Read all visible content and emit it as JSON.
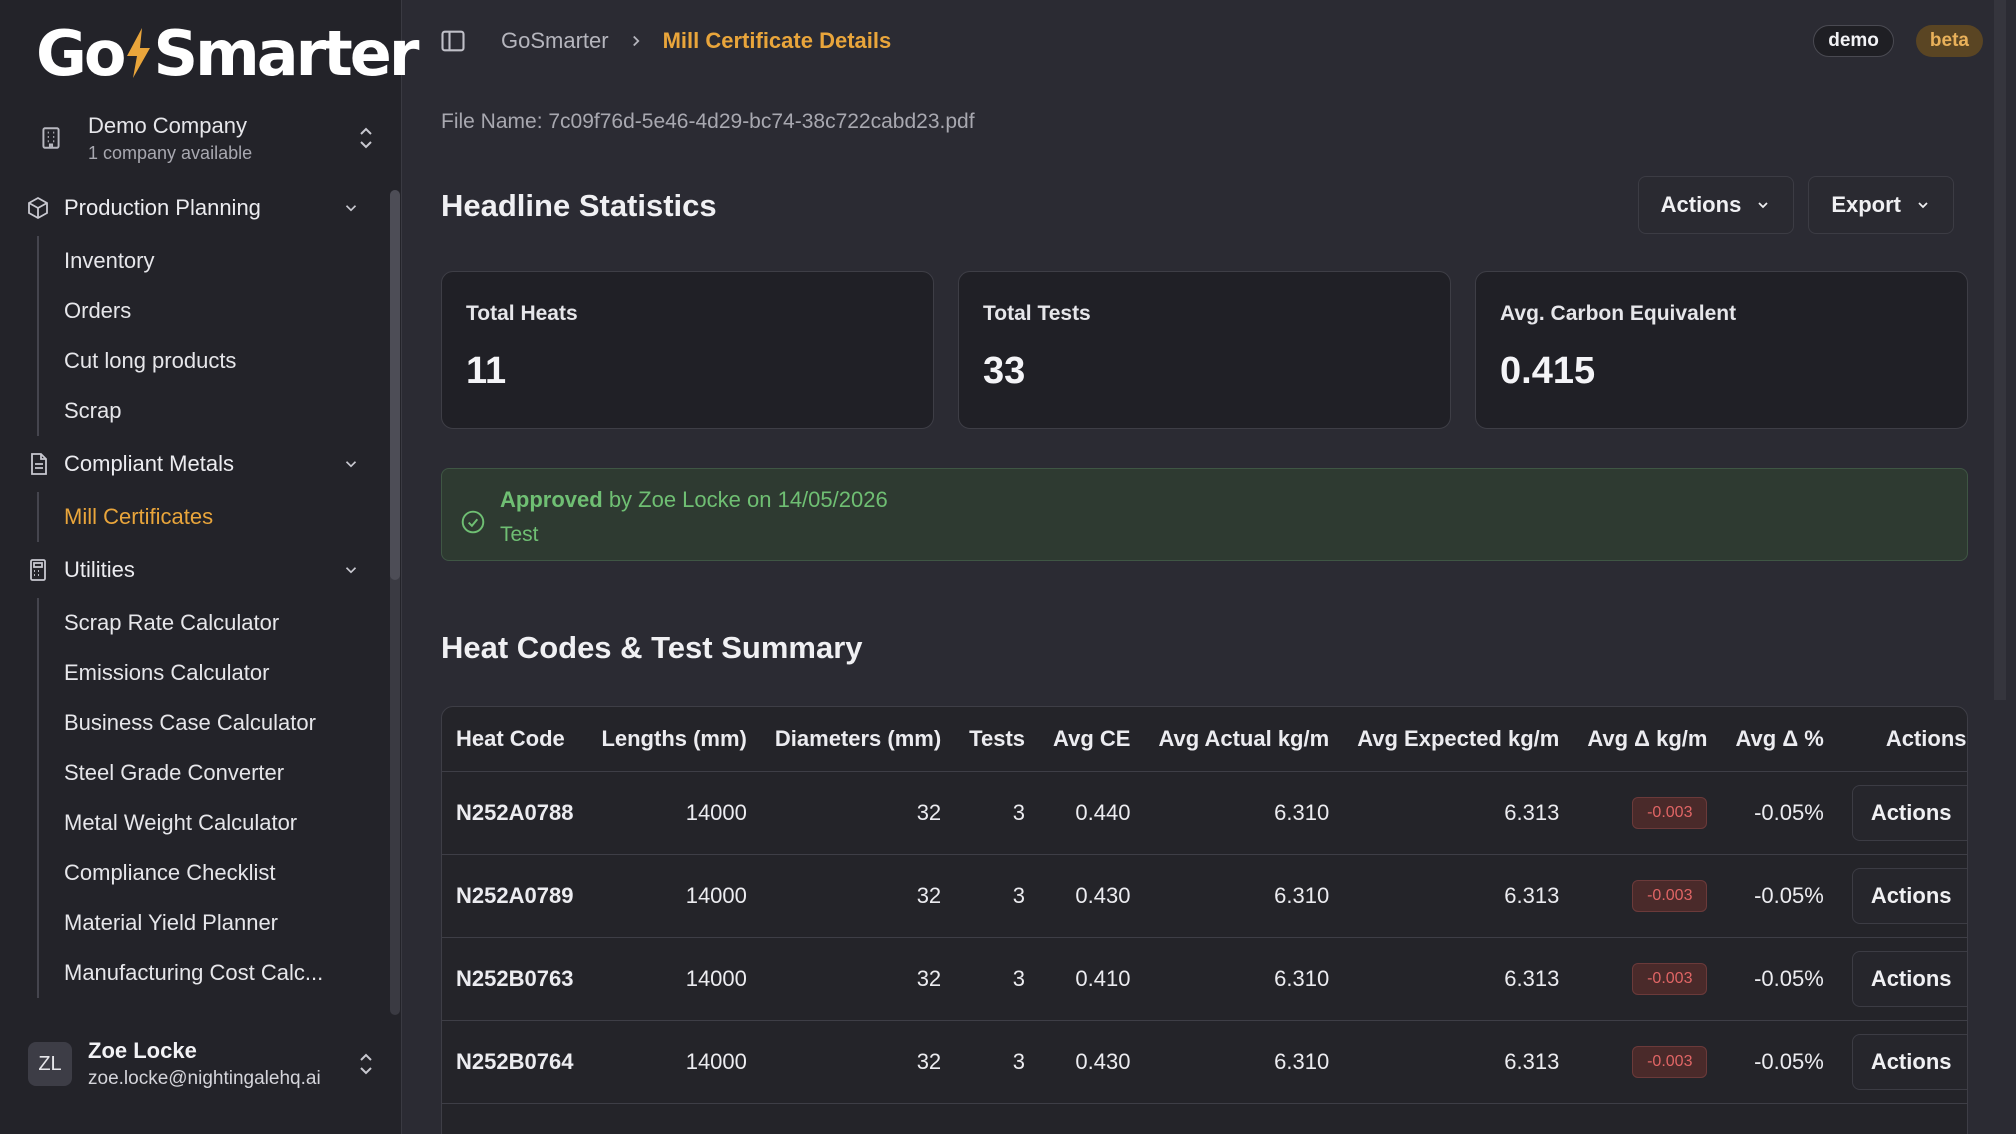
{
  "brand": {
    "name": "GoSmarter",
    "accent": "#e9a53b"
  },
  "company": {
    "name": "Demo Company",
    "subtitle": "1 company available"
  },
  "sidebar": {
    "groups": [
      {
        "label": "Production Planning",
        "items": [
          "Inventory",
          "Orders",
          "Cut long products",
          "Scrap"
        ]
      },
      {
        "label": "Compliant Metals",
        "items": [
          "Mill Certificates"
        ]
      },
      {
        "label": "Utilities",
        "items": [
          "Scrap Rate Calculator",
          "Emissions Calculator",
          "Business Case Calculator",
          "Steel Grade Converter",
          "Metal Weight Calculator",
          "Compliance Checklist",
          "Material Yield Planner",
          "Manufacturing Cost Calc..."
        ]
      }
    ],
    "active_item": "Mill Certificates"
  },
  "user": {
    "initials": "ZL",
    "name": "Zoe Locke",
    "email": "zoe.locke@nightingalehq.ai"
  },
  "header": {
    "breadcrumb_root": "GoSmarter",
    "breadcrumb_current": "Mill Certificate Details",
    "badge_demo": "demo",
    "badge_beta": "beta"
  },
  "file": {
    "label": "File Name: 7c09f76d-5e46-4d29-bc74-38c722cabd23.pdf"
  },
  "headline": {
    "title": "Headline Statistics",
    "actions_label": "Actions",
    "export_label": "Export",
    "stats": [
      {
        "label": "Total Heats",
        "value": "11"
      },
      {
        "label": "Total Tests",
        "value": "33"
      },
      {
        "label": "Avg. Carbon Equivalent",
        "value": "0.415"
      }
    ]
  },
  "approval": {
    "status": "Approved",
    "detail": "by Zoe Locke on 14/05/2026",
    "note": "Test"
  },
  "summary": {
    "title": "Heat Codes & Test Summary",
    "columns": [
      "Heat Code",
      "Lengths (mm)",
      "Diameters (mm)",
      "Tests",
      "Avg CE",
      "Avg Actual kg/m",
      "Avg Expected kg/m",
      "Avg Δ kg/m",
      "Avg Δ %",
      "Actions"
    ],
    "rows": [
      {
        "heat_code": "N252A0788",
        "lengths": "14000",
        "diameters": "32",
        "tests": "3",
        "avg_ce": "0.440",
        "actual": "6.310",
        "expected": "6.313",
        "delta": "-0.003",
        "delta_pct": "-0.05%",
        "action": "Actions"
      },
      {
        "heat_code": "N252A0789",
        "lengths": "14000",
        "diameters": "32",
        "tests": "3",
        "avg_ce": "0.430",
        "actual": "6.310",
        "expected": "6.313",
        "delta": "-0.003",
        "delta_pct": "-0.05%",
        "action": "Actions"
      },
      {
        "heat_code": "N252B0763",
        "lengths": "14000",
        "diameters": "32",
        "tests": "3",
        "avg_ce": "0.410",
        "actual": "6.310",
        "expected": "6.313",
        "delta": "-0.003",
        "delta_pct": "-0.05%",
        "action": "Actions"
      },
      {
        "heat_code": "N252B0764",
        "lengths": "14000",
        "diameters": "32",
        "tests": "3",
        "avg_ce": "0.430",
        "actual": "6.310",
        "expected": "6.313",
        "delta": "-0.003",
        "delta_pct": "-0.05%",
        "action": "Actions"
      }
    ]
  }
}
